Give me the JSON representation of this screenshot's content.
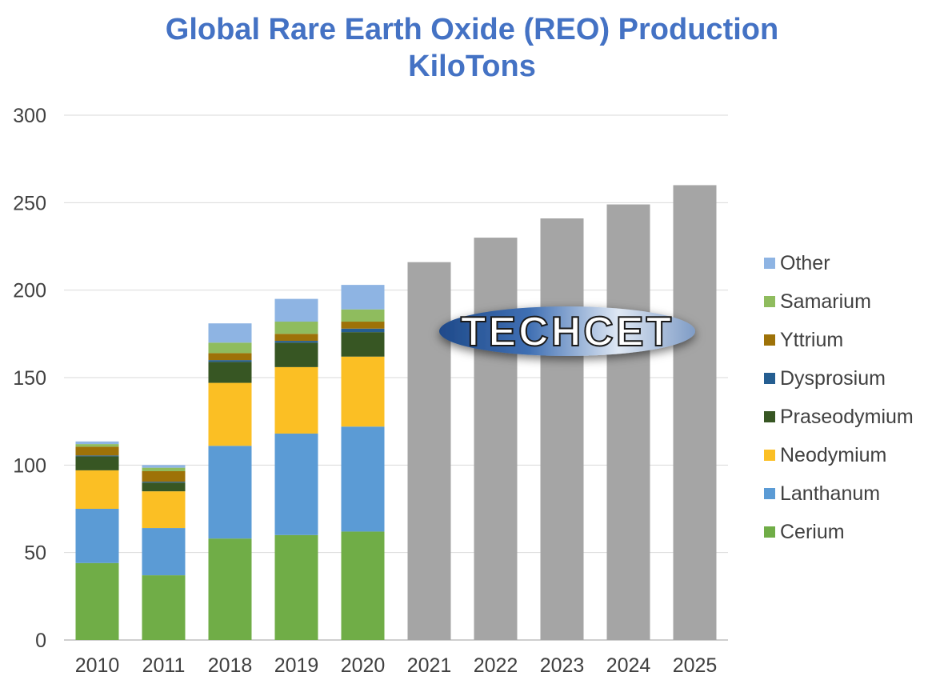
{
  "chart_data": {
    "type": "bar",
    "stacked": true,
    "title_lines": [
      "Global Rare Earth Oxide (REO) Production",
      "KiloTons"
    ],
    "categories": [
      "2010",
      "2011",
      "2018",
      "2019",
      "2020",
      "2021",
      "2022",
      "2023",
      "2024",
      "2025"
    ],
    "ylim": [
      0,
      300
    ],
    "yticks": [
      0,
      50,
      100,
      150,
      200,
      250,
      300
    ],
    "grid": true,
    "legend_position": "right",
    "series": [
      {
        "name": "Cerium",
        "color": "#70ad47",
        "values": [
          44,
          37,
          58,
          60,
          62,
          null,
          null,
          null,
          null,
          null
        ]
      },
      {
        "name": "Lanthanum",
        "color": "#5b9bd5",
        "values": [
          31,
          27,
          53,
          58,
          60,
          null,
          null,
          null,
          null,
          null
        ]
      },
      {
        "name": "Neodymium",
        "color": "#fbbf24",
        "values": [
          22,
          21,
          36,
          38,
          40,
          null,
          null,
          null,
          null,
          null
        ]
      },
      {
        "name": "Praseodymium",
        "color": "#375623",
        "values": [
          8,
          5,
          12,
          14,
          14,
          null,
          null,
          null,
          null,
          null
        ]
      },
      {
        "name": "Dysprosium",
        "color": "#255e91",
        "values": [
          0.5,
          0.5,
          1,
          1,
          2,
          null,
          null,
          null,
          null,
          null
        ]
      },
      {
        "name": "Yttrium",
        "color": "#9e7208",
        "values": [
          5,
          6,
          4,
          4,
          4,
          null,
          null,
          null,
          null,
          null
        ]
      },
      {
        "name": "Samarium",
        "color": "#8fbc5e",
        "values": [
          1.5,
          2,
          6,
          7,
          7,
          null,
          null,
          null,
          null,
          null
        ]
      },
      {
        "name": "Other",
        "color": "#8eb4e3",
        "values": [
          1.5,
          1.5,
          11,
          13,
          14,
          null,
          null,
          null,
          null,
          null
        ]
      }
    ],
    "total_series": {
      "color": "#a5a5a5",
      "values": [
        null,
        null,
        null,
        null,
        null,
        216,
        230,
        241,
        249,
        260
      ]
    }
  },
  "logo": {
    "text": "TECHCET"
  }
}
